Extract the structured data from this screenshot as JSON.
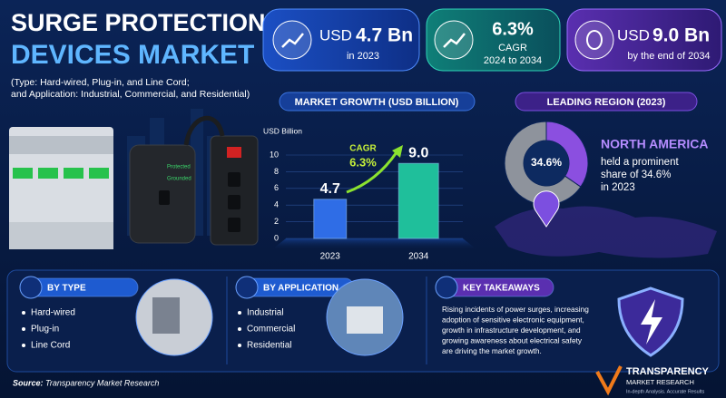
{
  "header": {
    "title_line1": "SURGE PROTECTION",
    "title_line2": "DEVICES MARKET",
    "subtitle": [
      "(Type: Hard-wired, Plug-in, and Line Cord;",
      "and Application: Industrial, Commercial, and Residential)"
    ]
  },
  "stats": [
    {
      "prefix": "USD",
      "value": "4.7 Bn",
      "caption": [
        "in 2023"
      ]
    },
    {
      "prefix": "",
      "value": "6.3%",
      "caption": [
        "CAGR",
        "2024 to 2034"
      ]
    },
    {
      "prefix": "USD",
      "value": "9.0 Bn",
      "caption": [
        "by the end of 2034"
      ]
    }
  ],
  "illustration": {
    "labels": [
      "Protected",
      "Grounded"
    ]
  },
  "chart_data": [
    {
      "type": "bar",
      "title": "MARKET GROWTH (USD BILLION)",
      "y_label": "USD Billion",
      "categories": [
        "2023",
        "2034"
      ],
      "values": [
        4.7,
        9.0
      ],
      "value_labels": [
        "4.7",
        "9.0"
      ],
      "colors": [
        "#2f6de6",
        "#1fbf9b"
      ],
      "ylim": [
        0,
        10
      ],
      "yticks": [
        0,
        2,
        4,
        6,
        8,
        10
      ],
      "annotation": [
        "CAGR",
        "6.3%"
      ]
    },
    {
      "type": "pie",
      "title": "LEADING REGION (2023)",
      "categories": [
        "NORTH AMERICA",
        null
      ],
      "values": [
        34.6,
        65.4
      ],
      "value_labels": [
        "34.6%",
        null
      ],
      "colors": [
        "#8b4fe0",
        "#8e939c"
      ],
      "note": [
        "held a prominent",
        "share of 34.6%",
        "in 2023"
      ]
    }
  ],
  "sections": [
    {
      "title": "BY TYPE",
      "items": [
        "Hard-wired",
        "Plug-in",
        "Line Cord"
      ]
    },
    {
      "title": "BY APPLICATION",
      "items": [
        "Industrial",
        "Commercial",
        "Residential"
      ]
    },
    {
      "title": "KEY TAKEAWAYS",
      "items": [
        "Rising incidents of power surges, increasing",
        "adoption of sensitive electronic equipment,",
        "growth in infrastructure development, and",
        "growing awareness about electrical safety",
        "are driving the market growth."
      ]
    }
  ],
  "source": {
    "label": "Source:",
    "text": "Transparency Market Research"
  },
  "logo": {
    "name": "TRANSPARENCY",
    "sub": "MARKET RESEARCH",
    "tagline": "In-depth Analysis. Accurate Results"
  }
}
